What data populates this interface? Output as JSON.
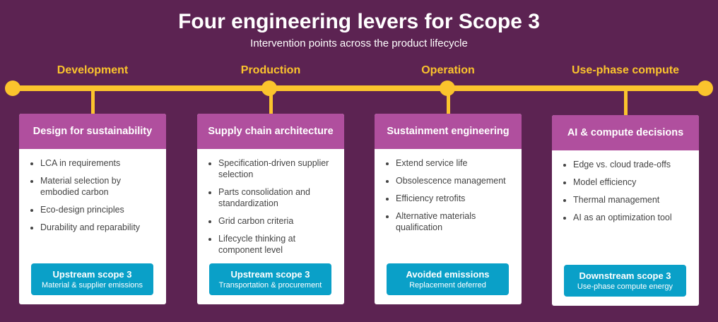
{
  "title": "Four engineering levers for Scope 3",
  "subtitle": "Intervention points across the product lifecycle",
  "colors": {
    "background": "#5c2352",
    "timeline": "#fbc42d",
    "card_header": "#b04f9e",
    "pill": "#0aa0c8"
  },
  "levers": [
    {
      "phase": "Development",
      "title": "Design for sustainability",
      "items": [
        "LCA in requirements",
        "Material selection by embodied carbon",
        "Eco-design principles",
        "Durability and reparability"
      ],
      "pill_title": "Upstream scope 3",
      "pill_sub": "Material & supplier emissions"
    },
    {
      "phase": "Production",
      "title": "Supply chain architecture",
      "items": [
        "Specification-driven supplier selection",
        "Parts consolidation and standardization",
        "Grid carbon criteria",
        "Lifecycle thinking at component level"
      ],
      "pill_title": "Upstream scope 3",
      "pill_sub": "Transportation & procurement"
    },
    {
      "phase": "Operation",
      "title": "Sustainment engineering",
      "items": [
        "Extend service life",
        "Obsolescence management",
        "Efficiency retrofits",
        "Alternative materials qualification"
      ],
      "pill_title": "Avoided emissions",
      "pill_sub": "Replacement deferred"
    },
    {
      "phase": "Use-phase compute",
      "title": "AI & compute decisions",
      "items": [
        "Edge vs. cloud trade-offs",
        "Model efficiency",
        "Thermal management",
        "AI as an optimization tool"
      ],
      "pill_title": "Downstream scope 3",
      "pill_sub": "Use-phase compute energy"
    }
  ]
}
